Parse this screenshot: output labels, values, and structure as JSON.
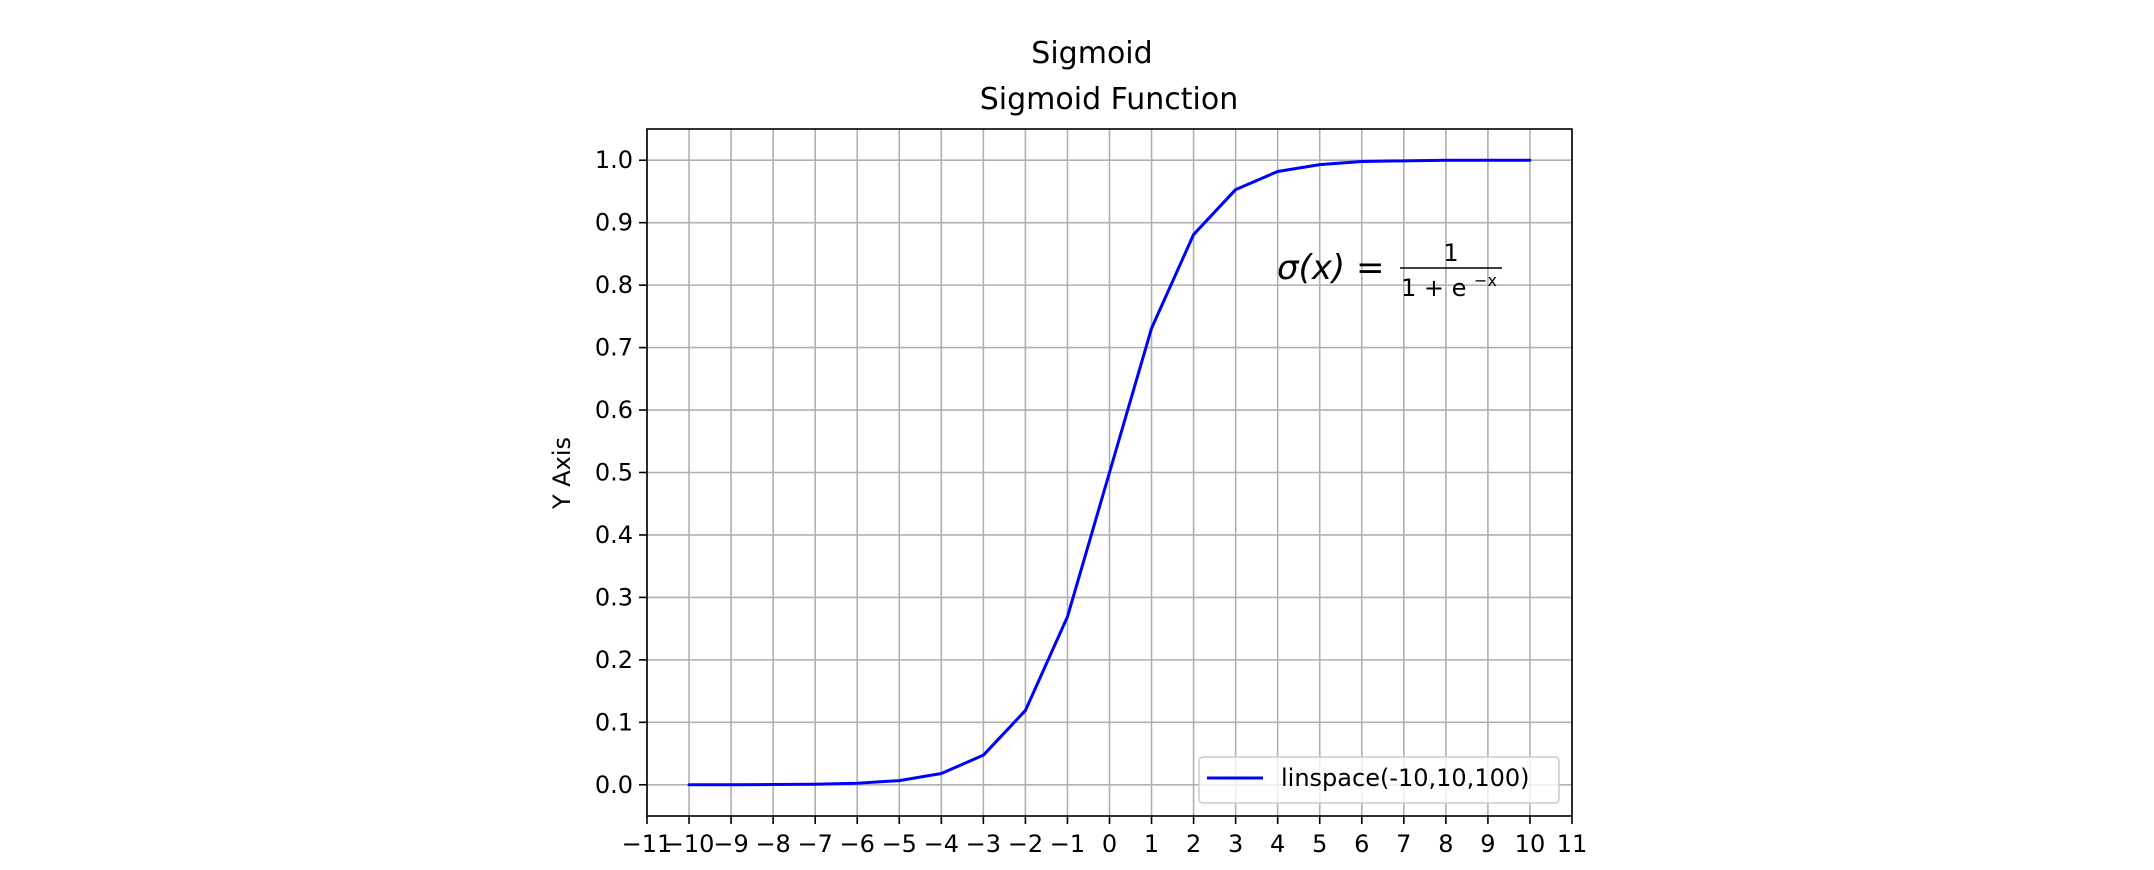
{
  "chart_data": {
    "type": "line",
    "suptitle": "Sigmoid",
    "title": "Sigmoid Function",
    "xlabel": "",
    "ylabel": "Y Axis",
    "xlim": [
      -11,
      11
    ],
    "ylim": [
      -0.05,
      1.05
    ],
    "x_ticks": [
      -11,
      -10,
      -9,
      -8,
      -7,
      -6,
      -5,
      -4,
      -3,
      -2,
      -1,
      0,
      1,
      2,
      3,
      4,
      5,
      6,
      7,
      8,
      9,
      10,
      11
    ],
    "x_tick_labels": [
      "−11",
      "−10",
      "−9",
      "−8",
      "−7",
      "−6",
      "−5",
      "−4",
      "−3",
      "−2",
      "−1",
      "0",
      "1",
      "2",
      "3",
      "4",
      "5",
      "6",
      "7",
      "8",
      "9",
      "10",
      "11"
    ],
    "y_ticks": [
      0.0,
      0.1,
      0.2,
      0.3,
      0.4,
      0.5,
      0.6,
      0.7,
      0.8,
      0.9,
      1.0
    ],
    "y_tick_labels": [
      "0.0",
      "0.1",
      "0.2",
      "0.3",
      "0.4",
      "0.5",
      "0.6",
      "0.7",
      "0.8",
      "0.9",
      "1.0"
    ],
    "grid": true,
    "legend_position": "lower-right",
    "series": [
      {
        "name": "linspace(-10,10,100)",
        "color": "#0000ff",
        "x": [
          -10,
          -9,
          -8,
          -7,
          -6,
          -5,
          -4,
          -3,
          -2,
          -1,
          0,
          1,
          2,
          3,
          4,
          5,
          6,
          7,
          8,
          9,
          10
        ],
        "y": [
          4.54e-05,
          0.000123,
          0.000335,
          0.000911,
          0.00247,
          0.00669,
          0.018,
          0.0474,
          0.119,
          0.269,
          0.5,
          0.731,
          0.881,
          0.953,
          0.982,
          0.993,
          0.998,
          0.999,
          1.0,
          1.0,
          1.0
        ]
      }
    ],
    "annotation": {
      "lhs": "σ(x) =",
      "numerator": "1",
      "denominator_base": "1 + e",
      "denominator_exponent": "−x",
      "x": 4,
      "y": 0.8
    }
  }
}
